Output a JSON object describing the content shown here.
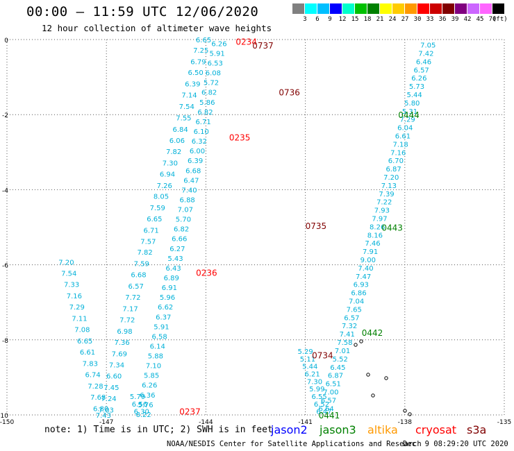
{
  "header": {
    "title": "00:00 – 11:59 UTC 12/06/2020",
    "subtitle": "12 hour collection of altimeter wave heights"
  },
  "scale": {
    "unit": "(ft)",
    "labels": [
      "3",
      "6",
      "9",
      "12",
      "15",
      "18",
      "21",
      "24",
      "27",
      "30",
      "33",
      "36",
      "39",
      "42",
      "45",
      "70"
    ],
    "colors": [
      "#808080",
      "#00ffff",
      "#00bfff",
      "#0000ff",
      "#00ffcc",
      "#00c000",
      "#008000",
      "#ffff00",
      "#ffcc00",
      "#ff9900",
      "#ff0000",
      "#cc0000",
      "#800000",
      "#800080",
      "#cc66ff",
      "#ff66ff",
      "#000000"
    ]
  },
  "footer": {
    "note": "note: 1) Time is in UTC; 2) SWH is in feet",
    "credit": "NOAA/NESDIS Center for Satellite Applications and Research",
    "timestamp": "Dec  9 08:29:20 UTC 2020"
  },
  "legend": [
    {
      "name": "jason2",
      "color": "#0000ff"
    },
    {
      "name": "jason3",
      "color": "#008000"
    },
    {
      "name": "altika",
      "color": "#ff9900"
    },
    {
      "name": "cryosat",
      "color": "#ff0000"
    },
    {
      "name": "s3a",
      "color": "#800000"
    }
  ],
  "chart_data": {
    "type": "scatter",
    "title": "00:00 – 11:59 UTC 12/06/2020",
    "xlim": [
      -150,
      -135
    ],
    "ylim": [
      -10,
      0
    ],
    "x_ticks": [
      "-150",
      "-147",
      "-144",
      "-141",
      "-138",
      "-135"
    ],
    "y_ticks": [
      "0",
      "-2",
      "-4",
      "-6",
      "-8",
      "-10"
    ],
    "grid": true,
    "colors": {
      "track": "#00b0d8",
      "s3a": "#800000",
      "cryosat": "#ff0000",
      "jason3": "#008000"
    },
    "series": [
      {
        "name": "cryosat",
        "x": [
          -144.07,
          -144.15,
          -144.23,
          -144.31,
          -144.4,
          -144.5,
          -144.58,
          -144.67,
          -144.77,
          -144.87,
          -144.97,
          -145.08,
          -145.16,
          -145.25,
          -145.35,
          -145.46,
          -145.55,
          -145.65,
          -145.74,
          -145.84,
          -145.94,
          -146.03,
          -146.11,
          -146.2,
          -146.28,
          -146.37,
          -146.45,
          -146.53,
          -146.61,
          -146.69,
          -146.77
        ],
        "y": [
          0.0,
          -0.28,
          -0.58,
          -0.87,
          -1.17,
          -1.47,
          -1.77,
          -2.08,
          -2.38,
          -2.68,
          -2.98,
          -3.28,
          -3.58,
          -3.88,
          -4.17,
          -4.47,
          -4.77,
          -5.07,
          -5.37,
          -5.66,
          -5.96,
          -6.26,
          -6.56,
          -6.86,
          -7.16,
          -7.46,
          -7.76,
          -8.06,
          -8.36,
          -8.66,
          -8.96
        ],
        "swh": [
          6.65,
          7.25,
          6.79,
          6.5,
          6.39,
          7.14,
          7.54,
          7.55,
          6.84,
          6.06,
          7.82,
          7.3,
          6.94,
          7.26,
          8.05,
          7.59,
          6.65,
          6.71,
          7.57,
          7.82,
          7.59,
          6.68,
          6.57,
          7.72,
          7.17,
          7.72,
          6.98,
          7.36,
          7.69,
          7.34,
          6.6
        ]
      },
      {
        "name": "cryosat (cont.)",
        "x": [
          -146.85,
          -146.93,
          -147.01,
          -147.09,
          -147.17,
          -147.25,
          -147.33,
          -147.41,
          -147.49,
          -147.57,
          -147.65,
          -147.73,
          -147.81,
          -147.89,
          -147.97,
          -148.05,
          -148.13,
          -148.21
        ],
        "y": [
          -9.26,
          -9.56,
          -9.86,
          -10.0,
          -9.82,
          -9.52,
          -9.22,
          -8.92,
          -8.62,
          -8.32,
          -8.02,
          -7.72,
          -7.42,
          -7.12,
          -6.82,
          -6.52,
          -6.22,
          -5.92
        ],
        "swh": [
          7.45,
          7.24,
          7.03,
          7.43,
          6.8,
          7.68,
          7.28,
          6.74,
          7.83,
          6.61,
          6.65,
          7.08,
          7.11,
          7.29,
          7.16,
          7.33,
          7.54,
          7.2
        ]
      },
      {
        "name": "s3a",
        "x": [
          -143.6,
          -143.66,
          -143.72,
          -143.78,
          -143.84,
          -143.9,
          -143.96,
          -144.02,
          -144.08,
          -144.14,
          -144.2,
          -144.26,
          -144.32,
          -144.38,
          -144.44,
          -144.5,
          -144.56,
          -144.62,
          -144.68,
          -144.74,
          -144.8,
          -144.86,
          -144.92,
          -144.98,
          -145.04,
          -145.1,
          -145.16,
          -145.22,
          -145.28,
          -145.34,
          -145.4,
          -145.46,
          -145.52,
          -145.58,
          -145.64,
          -145.7,
          -145.76,
          -145.82,
          -145.88,
          -145.94,
          -146.0,
          -146.06
        ],
        "y": [
          -0.1,
          -0.36,
          -0.62,
          -0.88,
          -1.14,
          -1.4,
          -1.66,
          -1.92,
          -2.18,
          -2.44,
          -2.7,
          -2.96,
          -3.22,
          -3.48,
          -3.74,
          -4.0,
          -4.26,
          -4.52,
          -4.78,
          -5.04,
          -5.3,
          -5.56,
          -5.82,
          -6.08,
          -6.34,
          -6.6,
          -6.86,
          -7.12,
          -7.38,
          -7.64,
          -7.9,
          -8.16,
          -8.42,
          -8.68,
          -8.94,
          -9.2,
          -9.46,
          -9.72,
          -9.98,
          -9.9,
          -9.7,
          -9.5
        ],
        "swh": [
          6.26,
          5.91,
          6.53,
          6.08,
          5.72,
          6.82,
          5.86,
          6.82,
          6.71,
          6.1,
          6.32,
          6.0,
          6.39,
          6.68,
          6.47,
          7.4,
          6.88,
          7.07,
          5.7,
          6.82,
          6.66,
          6.27,
          5.43,
          6.43,
          6.89,
          6.91,
          5.96,
          6.62,
          6.37,
          5.91,
          6.58,
          6.14,
          5.88,
          7.1,
          5.85,
          6.26,
          6.36,
          5.76,
          6.22,
          6.3,
          6.56,
          5.79
        ]
      },
      {
        "name": "jason3",
        "x": [
          -137.3,
          -137.36,
          -137.43,
          -137.5,
          -137.57,
          -137.64,
          -137.71,
          -137.78,
          -137.85,
          -137.92,
          -137.99,
          -138.06,
          -138.13,
          -138.2,
          -138.27,
          -138.34,
          -138.41,
          -138.48,
          -138.55,
          -138.62,
          -138.69,
          -138.76,
          -138.83,
          -138.9,
          -138.97,
          -139.04,
          -139.11,
          -139.18,
          -139.25,
          -139.32,
          -139.39,
          -139.46,
          -139.53,
          -139.6,
          -139.67,
          -139.74,
          -139.81,
          -139.88,
          -139.95,
          -140.02,
          -140.09,
          -140.16,
          -140.23,
          -140.3,
          -140.37,
          -140.44,
          -140.51,
          -140.58,
          -140.65,
          -140.72,
          -140.79,
          -140.86,
          -140.93,
          -141.0
        ],
        "y": [
          -0.14,
          -0.36,
          -0.58,
          -0.8,
          -1.02,
          -1.24,
          -1.46,
          -1.68,
          -1.9,
          -2.12,
          -2.34,
          -2.56,
          -2.78,
          -3.0,
          -3.22,
          -3.44,
          -3.66,
          -3.88,
          -4.1,
          -4.32,
          -4.54,
          -4.76,
          -4.98,
          -5.2,
          -5.42,
          -5.64,
          -5.86,
          -6.08,
          -6.3,
          -6.52,
          -6.74,
          -6.96,
          -7.18,
          -7.4,
          -7.62,
          -7.84,
          -8.06,
          -8.28,
          -8.5,
          -8.72,
          -8.94,
          -9.16,
          -9.38,
          -9.6,
          -9.82,
          -9.9,
          -9.7,
          -9.5,
          -9.3,
          -9.1,
          -8.9,
          -8.7,
          -8.5,
          -8.3
        ],
        "swh": [
          7.05,
          7.42,
          6.46,
          6.57,
          6.26,
          5.73,
          5.44,
          5.8,
          5.31,
          7.29,
          6.04,
          6.61,
          7.18,
          7.16,
          6.7,
          6.87,
          7.2,
          7.13,
          7.39,
          7.22,
          7.93,
          7.97,
          8.26,
          8.16,
          7.46,
          7.91,
          9.0,
          7.4,
          7.47,
          6.93,
          6.86,
          7.04,
          7.65,
          6.57,
          7.32,
          7.41,
          7.58,
          7.01,
          5.52,
          6.45,
          6.87,
          6.51,
          7.0,
          6.57,
          6.64,
          6.47,
          6.52,
          6.55,
          5.99,
          7.3,
          6.21,
          5.44,
          5.11,
          5.29
        ]
      }
    ],
    "pass_times": [
      {
        "label": "0234",
        "sat": "cryosat",
        "x": -143.1,
        "y": -0.05
      },
      {
        "label": "0737",
        "sat": "s3a",
        "x": -142.6,
        "y": -0.15
      },
      {
        "label": "0736",
        "sat": "s3a",
        "x": -141.8,
        "y": -1.4
      },
      {
        "label": "0235",
        "sat": "cryosat",
        "x": -143.3,
        "y": -2.6
      },
      {
        "label": "0735",
        "sat": "s3a",
        "x": -141.0,
        "y": -4.95
      },
      {
        "label": "0236",
        "sat": "cryosat",
        "x": -144.3,
        "y": -6.2
      },
      {
        "label": "0734",
        "sat": "s3a",
        "x": -140.8,
        "y": -8.4
      },
      {
        "label": "0237",
        "sat": "cryosat",
        "x": -144.8,
        "y": -9.9
      },
      {
        "label": "0444",
        "sat": "jason3",
        "x": -138.2,
        "y": -2.0
      },
      {
        "label": "0443",
        "sat": "jason3",
        "x": -138.7,
        "y": -5.0
      },
      {
        "label": "0442",
        "sat": "jason3",
        "x": -139.3,
        "y": -7.8
      },
      {
        "label": "0441",
        "sat": "jason3",
        "x": -140.6,
        "y": -10.0
      }
    ]
  }
}
